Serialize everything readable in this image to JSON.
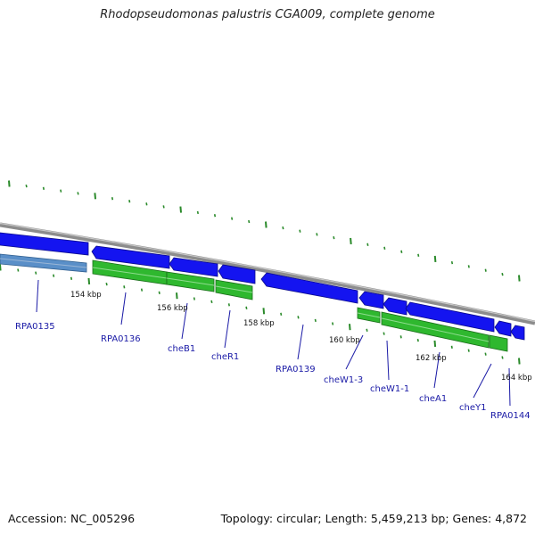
{
  "title": "Rhodopseudomonas palustris CGA009, complete genome",
  "footer": {
    "accession": "Accession: NC_005296",
    "topology": "Topology: circular; Length: 5,459,213 bp; Genes: 4,872"
  },
  "colors": {
    "forward_gene": "#1414f0",
    "reverse_gene": "#2fb82f",
    "rna_gene": "#5a8fc8",
    "backbone": "#8c8c8c",
    "tick": "#2a8a2a",
    "label": "#1a1aa6"
  },
  "scale_labels": [
    "154 kbp",
    "156 kbp",
    "158 kbp",
    "160 kbp",
    "162 kbp",
    "164 kbp"
  ],
  "genes": [
    {
      "id": "RPA0135",
      "label": "RPA0135"
    },
    {
      "id": "RPA0136",
      "label": "RPA0136"
    },
    {
      "id": "cheB1",
      "label": "cheB1"
    },
    {
      "id": "cheR1",
      "label": "cheR1"
    },
    {
      "id": "RPA0139",
      "label": "RPA0139"
    },
    {
      "id": "cheW1-3",
      "label": "cheW1-3"
    },
    {
      "id": "cheW1-1",
      "label": "cheW1-1"
    },
    {
      "id": "cheA1",
      "label": "cheA1"
    },
    {
      "id": "cheY1",
      "label": "cheY1"
    },
    {
      "id": "RPA0144",
      "label": "RPA0144"
    }
  ]
}
